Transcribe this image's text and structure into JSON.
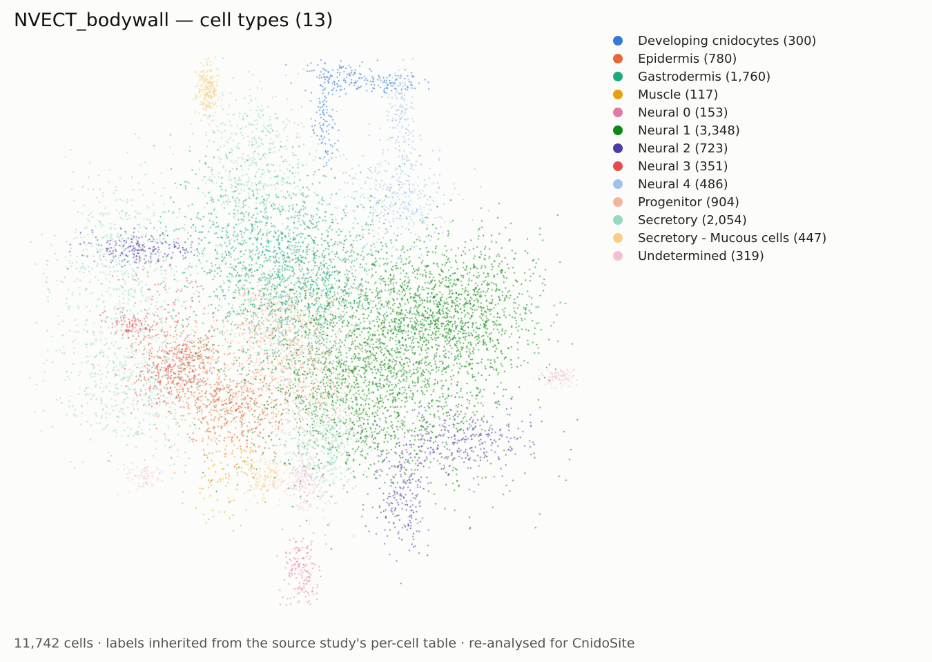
{
  "chart_data": {
    "type": "scatter",
    "title": "NVECT_bodywall — cell types (13)",
    "footer": "11,742 cells · labels inherited from the source study's per-cell table · re-analysed for CnidoSite",
    "legend_position": "top-right",
    "grid": false,
    "axes_visible": false,
    "series": [
      {
        "name": "Developing cnidocytes (300)",
        "color": "#2f7bd6",
        "count": 300
      },
      {
        "name": "Epidermis (780)",
        "color": "#e5673a",
        "count": 780
      },
      {
        "name": "Gastrodermis (1,760)",
        "color": "#1aab82",
        "count": 1760
      },
      {
        "name": "Muscle (117)",
        "color": "#e8a00c",
        "count": 117
      },
      {
        "name": "Neural 0 (153)",
        "color": "#e27aa4",
        "count": 153
      },
      {
        "name": "Neural 1 (3,348)",
        "color": "#0b8a12",
        "count": 3348
      },
      {
        "name": "Neural 2 (723)",
        "color": "#4d3ba8",
        "count": 723
      },
      {
        "name": "Neural 3 (351)",
        "color": "#e24c4c",
        "count": 351
      },
      {
        "name": "Neural 4 (486)",
        "color": "#9ec2ea",
        "count": 486
      },
      {
        "name": "Progenitor (904)",
        "color": "#f2b59c",
        "count": 904
      },
      {
        "name": "Secretory (2,054)",
        "color": "#97d8c0",
        "count": 2054
      },
      {
        "name": "Secretory - Mucous cells (447)",
        "color": "#f5cf87",
        "count": 447
      },
      {
        "name": "Undetermined (319)",
        "color": "#f3c1d4",
        "count": 319
      }
    ]
  }
}
